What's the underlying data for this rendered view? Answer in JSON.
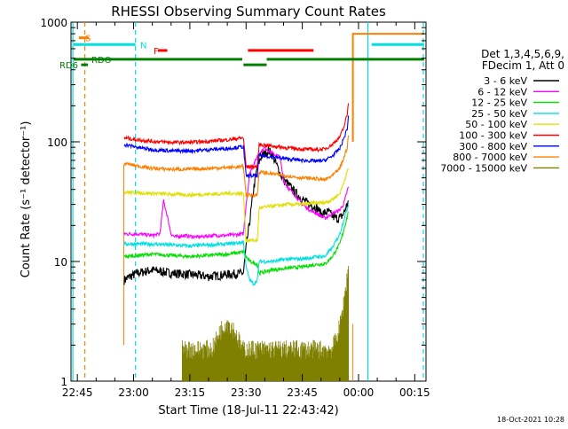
{
  "chart_data": {
    "type": "line",
    "title": "RHESSI Observing Summary Count Rates",
    "xlabel": "Start Time (18-Jul-11 22:43:42)",
    "ylabel": "Count Rate (s⁻¹ detector⁻¹)",
    "y_scale": "log",
    "xlim": [
      -1.7,
      93.0
    ],
    "ylim": [
      1,
      1000
    ],
    "x_ticks": [
      {
        "value": 0,
        "label": "22:45"
      },
      {
        "value": 15,
        "label": "23:00"
      },
      {
        "value": 30,
        "label": "23:15"
      },
      {
        "value": 45,
        "label": "23:30"
      },
      {
        "value": 60,
        "label": "23:45"
      },
      {
        "value": 75,
        "label": "00:00"
      },
      {
        "value": 90,
        "label": "00:15"
      }
    ],
    "y_ticks": [
      {
        "value": 1,
        "label": "1"
      },
      {
        "value": 10,
        "label": "10"
      },
      {
        "value": 100,
        "label": "100"
      },
      {
        "value": 1000,
        "label": "1000"
      }
    ],
    "legend_header": [
      "Det 1,3,4,5,6,9,",
      "FDecim 1, Att 0"
    ],
    "footer_date": "18-Oct-2021 10:28",
    "series": [
      {
        "name": "3 - 6 keV",
        "color": "#000000",
        "x": [
          12.5,
          14,
          16,
          20,
          25,
          30,
          35,
          40,
          44.3,
          45,
          46,
          47,
          48,
          49,
          50,
          51,
          52,
          53,
          54,
          55,
          56,
          58,
          60,
          62,
          64,
          65,
          67,
          68,
          69,
          70,
          71,
          72.3
        ],
        "y": [
          7,
          7.5,
          8,
          8.5,
          8,
          7.8,
          7.5,
          7.8,
          8,
          13,
          22,
          40,
          62,
          75,
          80,
          85,
          78,
          66,
          55,
          48,
          45,
          38,
          33,
          30,
          28,
          25,
          26,
          24,
          23,
          23,
          25,
          32
        ]
      },
      {
        "name": "6 - 12 keV",
        "color": "#ff00ff",
        "x": [
          12.5,
          16,
          20,
          22,
          23,
          24,
          25,
          26,
          28,
          32,
          36,
          40,
          44.3,
          45,
          46,
          48,
          50,
          52,
          54,
          55,
          56,
          58,
          60,
          62,
          64,
          66,
          68,
          70,
          71,
          72.3
        ],
        "y": [
          17,
          17,
          16.5,
          17,
          32,
          24,
          17,
          16,
          16.5,
          16,
          16.5,
          16.5,
          17,
          30,
          55,
          75,
          90,
          80,
          75,
          48,
          42,
          36,
          30,
          27,
          25,
          23,
          25,
          27,
          30,
          42
        ]
      },
      {
        "name": "12 - 25 keV",
        "color": "#00e000",
        "x": [
          12.5,
          20,
          30,
          40,
          44.3,
          45,
          46,
          48,
          48.5,
          52,
          56,
          60,
          64,
          66,
          68,
          70,
          71,
          72.3
        ],
        "y": [
          11,
          11.5,
          11,
          11.5,
          12,
          11,
          10,
          9.5,
          8,
          8.5,
          8.8,
          9,
          9.5,
          9.5,
          11,
          14,
          18,
          26
        ]
      },
      {
        "name": "25 - 50 keV",
        "color": "#00e0e0",
        "x": [
          12.5,
          20,
          30,
          40,
          44.3,
          45,
          46,
          47,
          48,
          48.5,
          52,
          56,
          60,
          64,
          66,
          68,
          70,
          71,
          72.3
        ],
        "y": [
          14,
          14,
          13.5,
          14,
          14.5,
          9,
          7,
          6.5,
          7,
          10,
          10,
          10.5,
          10.5,
          11,
          11,
          13,
          17,
          22,
          30
        ]
      },
      {
        "name": "50 - 100 keV",
        "color": "#e0e000",
        "x": [
          12.5,
          20,
          30,
          40,
          44.3,
          45,
          48,
          48.5,
          52,
          56,
          60,
          64,
          66,
          68,
          70,
          71,
          72.3
        ],
        "y": [
          38,
          37,
          36,
          37,
          37,
          15,
          15,
          28,
          29,
          30,
          30,
          31,
          31,
          33,
          37,
          45,
          60
        ]
      },
      {
        "name": "100 - 300 keV",
        "color": "#ff0000",
        "x": [
          12.5,
          16,
          20,
          25,
          30,
          35,
          40,
          44.3,
          45,
          48,
          48.5,
          52,
          56,
          60,
          64,
          66,
          68,
          70,
          71,
          72,
          72.3
        ],
        "y": [
          108,
          104,
          101,
          99,
          99,
          101,
          104,
          108,
          62,
          62,
          95,
          92,
          89,
          87,
          86,
          87,
          95,
          110,
          130,
          170,
          210
        ]
      },
      {
        "name": "300 - 800 keV",
        "color": "#0000ff",
        "x": [
          12.5,
          16,
          20,
          25,
          30,
          35,
          40,
          44.3,
          45,
          48,
          48.5,
          52,
          56,
          60,
          64,
          66,
          68,
          70,
          71,
          72,
          72.3
        ],
        "y": [
          95,
          90,
          86,
          84,
          84,
          86,
          88,
          91,
          52,
          52,
          77,
          75,
          72,
          70,
          69,
          70,
          76,
          88,
          105,
          130,
          160
        ]
      },
      {
        "name": "800 - 7000 keV",
        "color": "#ff8000",
        "x": [
          12.5,
          16,
          20,
          25,
          30,
          35,
          40,
          44.3,
          45,
          48,
          48.5,
          52,
          56,
          60,
          64,
          66,
          68,
          70,
          71,
          72,
          72.3
        ],
        "y": [
          66,
          63,
          60,
          59,
          59,
          60,
          61,
          62,
          36,
          36,
          56,
          54,
          52,
          50,
          49,
          48,
          52,
          60,
          72,
          90,
          115
        ]
      },
      {
        "name": "7000 - 15000 keV",
        "color": "#808000",
        "x": [
          28,
          32,
          36,
          38,
          40,
          42,
          44,
          48,
          52,
          56,
          60,
          64,
          68,
          70,
          71,
          72,
          72.3
        ],
        "y": [
          1.7,
          1.7,
          1.7,
          2.4,
          2.9,
          2.4,
          1.7,
          1.7,
          1.7,
          1.7,
          1.7,
          1.7,
          1.7,
          2.6,
          4,
          7,
          9
        ]
      }
    ],
    "vertical_lines": [
      {
        "x": -1.2,
        "color": "#00e0e0",
        "style": "solid"
      },
      {
        "x": 2.0,
        "color": "#ff8000",
        "style": "dashed"
      },
      {
        "x": 15.5,
        "color": "#00e0e0",
        "style": "dashed"
      },
      {
        "x": 77.5,
        "color": "#00e0e0",
        "style": "solid"
      },
      {
        "x": 92.3,
        "color": "#00e0e0",
        "style": "dashed"
      }
    ],
    "flag_bars": [
      {
        "label": "S",
        "color": "#ff8000",
        "segments": [
          [
            0.4,
            3.1
          ]
        ],
        "level": 740
      },
      {
        "label": "N",
        "color": "#00e0e0",
        "segments": [
          [
            -1.0,
            15.5
          ],
          [
            78.5,
            92.5
          ]
        ],
        "level": 650
      },
      {
        "label": "F",
        "color": "#ff0000",
        "segments": [
          [
            21.5,
            24.0
          ],
          [
            45.5,
            63.0
          ]
        ],
        "level": 580
      },
      {
        "label": "RDO",
        "color": "#008000",
        "segments": [
          [
            -1.0,
            44.0
          ],
          [
            50.5,
            92.5
          ]
        ],
        "level": 490
      },
      {
        "label": "RD6",
        "color": "#008000",
        "segments": [
          [
            1.0,
            2.8
          ],
          [
            44.3,
            50.5
          ]
        ],
        "level": 440
      }
    ],
    "attenuator_line": {
      "color": "#ff8000",
      "x_start": 12.4,
      "x_end": 73.5,
      "x_top_end": 92.5
    }
  }
}
